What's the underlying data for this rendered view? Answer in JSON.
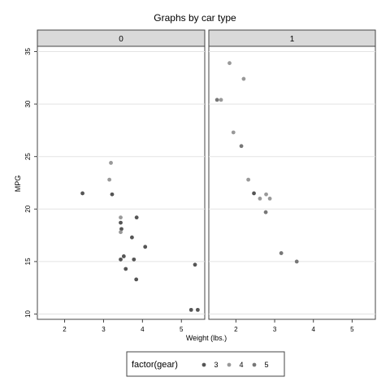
{
  "chart_data": {
    "type": "scatter",
    "title": "Graphs by car type",
    "xlabel": "Weight (lbs.)",
    "ylabel": "MPG",
    "xlim": [
      1.3,
      5.6
    ],
    "ylim": [
      9.5,
      35.5
    ],
    "xticks": [
      2,
      3,
      4,
      5
    ],
    "yticks": [
      10,
      15,
      20,
      25,
      30,
      35
    ],
    "grid": true,
    "legend": {
      "title": "factor(gear)",
      "position": "bottom",
      "entries": [
        {
          "label": "3",
          "color": "#555555"
        },
        {
          "label": "4",
          "color": "#999999"
        },
        {
          "label": "5",
          "color": "#777777"
        }
      ]
    },
    "panels": [
      {
        "label": "0",
        "points": [
          {
            "x": 2.46,
            "y": 21.5,
            "gear": 3
          },
          {
            "x": 3.22,
            "y": 21.4,
            "gear": 3
          },
          {
            "x": 3.44,
            "y": 18.7,
            "gear": 3
          },
          {
            "x": 3.46,
            "y": 18.1,
            "gear": 3
          },
          {
            "x": 3.57,
            "y": 14.3,
            "gear": 3
          },
          {
            "x": 4.07,
            "y": 16.4,
            "gear": 3
          },
          {
            "x": 3.73,
            "y": 17.3,
            "gear": 3
          },
          {
            "x": 3.78,
            "y": 15.2,
            "gear": 3
          },
          {
            "x": 5.25,
            "y": 10.4,
            "gear": 3
          },
          {
            "x": 5.42,
            "y": 10.4,
            "gear": 3
          },
          {
            "x": 5.35,
            "y": 14.7,
            "gear": 3
          },
          {
            "x": 3.52,
            "y": 15.5,
            "gear": 3
          },
          {
            "x": 3.44,
            "y": 15.2,
            "gear": 3
          },
          {
            "x": 3.84,
            "y": 13.3,
            "gear": 3
          },
          {
            "x": 3.85,
            "y": 19.2,
            "gear": 3
          },
          {
            "x": 3.19,
            "y": 24.4,
            "gear": 4
          },
          {
            "x": 3.15,
            "y": 22.8,
            "gear": 4
          },
          {
            "x": 3.44,
            "y": 19.2,
            "gear": 4
          },
          {
            "x": 3.44,
            "y": 17.8,
            "gear": 4
          }
        ]
      },
      {
        "label": "1",
        "points": [
          {
            "x": 2.62,
            "y": 21.0,
            "gear": 4
          },
          {
            "x": 2.875,
            "y": 21.0,
            "gear": 4
          },
          {
            "x": 2.32,
            "y": 22.8,
            "gear": 4
          },
          {
            "x": 2.2,
            "y": 32.4,
            "gear": 4
          },
          {
            "x": 1.615,
            "y": 30.4,
            "gear": 4
          },
          {
            "x": 1.835,
            "y": 33.9,
            "gear": 4
          },
          {
            "x": 1.935,
            "y": 27.3,
            "gear": 4
          },
          {
            "x": 2.78,
            "y": 21.4,
            "gear": 4
          },
          {
            "x": 2.465,
            "y": 21.5,
            "gear": 3
          },
          {
            "x": 2.14,
            "y": 26.0,
            "gear": 5
          },
          {
            "x": 1.513,
            "y": 30.4,
            "gear": 5
          },
          {
            "x": 3.17,
            "y": 15.8,
            "gear": 5
          },
          {
            "x": 2.77,
            "y": 19.7,
            "gear": 5
          },
          {
            "x": 3.57,
            "y": 15.0,
            "gear": 5
          }
        ]
      }
    ]
  }
}
